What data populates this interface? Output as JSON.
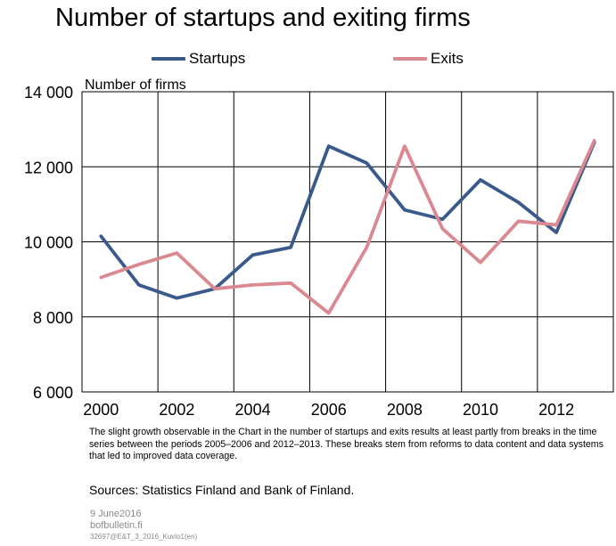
{
  "chart_data": {
    "type": "line",
    "title": "Number of startups and exiting firms",
    "ylabel": "Number of firms",
    "x": [
      2000,
      2001,
      2002,
      2003,
      2004,
      2005,
      2006,
      2007,
      2008,
      2009,
      2010,
      2011,
      2012,
      2013
    ],
    "x_tick_labels": [
      "2000",
      "2002",
      "2004",
      "2006",
      "2008",
      "2010",
      "2012"
    ],
    "y_tick_labels": [
      "14 000",
      "12 000",
      "10 000",
      "8 000",
      "6 000"
    ],
    "ylim": [
      6000,
      14000
    ],
    "grid": true,
    "legend_position": "top",
    "series": [
      {
        "name": "Startups",
        "color": "#3a5a8c",
        "values": [
          10150,
          8850,
          8500,
          8750,
          9650,
          9850,
          12550,
          12100,
          10850,
          10600,
          11650,
          11050,
          10250,
          12650
        ]
      },
      {
        "name": "Exits",
        "color": "#d9898f",
        "values": [
          9050,
          9400,
          9700,
          8750,
          8850,
          8900,
          8100,
          9850,
          12550,
          10350,
          9450,
          10550,
          10450,
          12700
        ]
      }
    ]
  },
  "note": "The slight growth observable in the Chart in the number of startups and exits results at least partly from breaks in the time series between the periods 2005–2006 and 2012–2013. These breaks stem from reforms to data content and data systems that led to improved data coverage.",
  "sources": "Sources: Statistics Finland and Bank of Finland.",
  "footer": {
    "date": "9 June2016",
    "site": "bofbulletin.fi",
    "code": "32697@E&T_3_2016_Kuvio1(en)"
  }
}
